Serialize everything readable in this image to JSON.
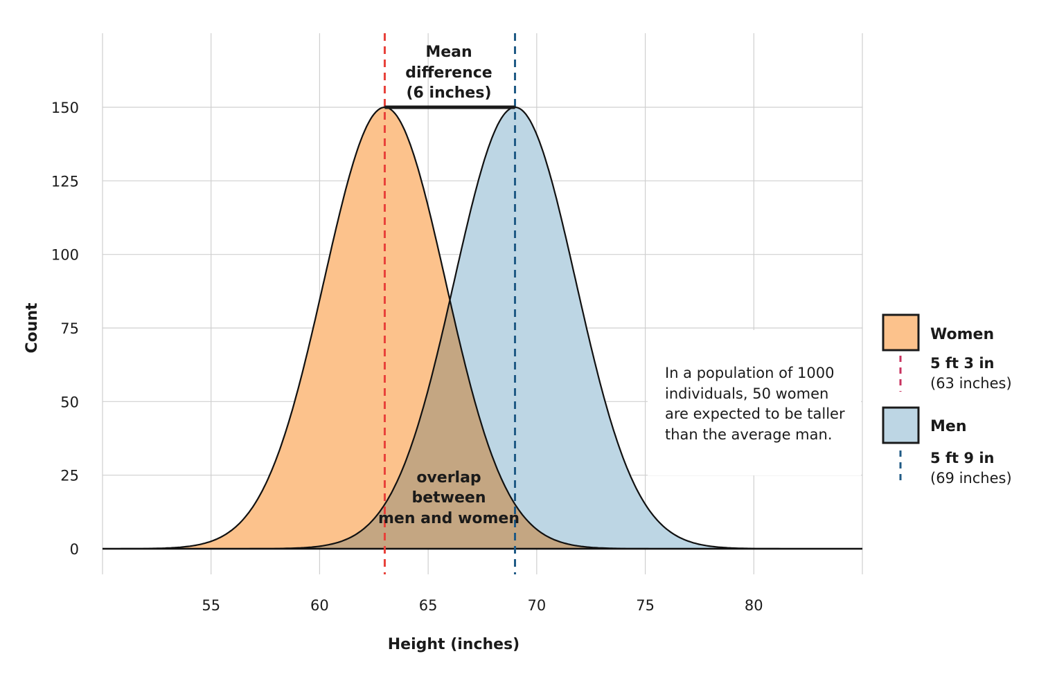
{
  "chart_data": {
    "type": "area",
    "xlabel": "Height (inches)",
    "ylabel": "Count",
    "xlim": [
      50,
      85
    ],
    "ylim": [
      0,
      150
    ],
    "x_ticks": [
      55,
      60,
      65,
      70,
      75,
      80
    ],
    "y_ticks": [
      0,
      25,
      50,
      75,
      100,
      125,
      150
    ],
    "grid": true,
    "series": [
      {
        "name": "Women",
        "mean": 63,
        "peak": 150,
        "sd": 2.8,
        "color": "#fcc28c",
        "mean_line_color": "#e8413a",
        "legend_line_color": "#c8325f",
        "label_ft": "5 ft 3 in",
        "label_in": "(63 inches)"
      },
      {
        "name": "Men",
        "mean": 69,
        "peak": 150,
        "sd": 2.8,
        "color": "#bdd6e4",
        "mean_line_color": "#1f5a85",
        "legend_line_color": "#1f5a85",
        "label_ft": "5 ft 9 in",
        "label_in": "(69 inches)"
      }
    ],
    "overlap_color": "#c4a682",
    "annotations": {
      "mean_difference": [
        "Mean",
        "difference",
        "(6 inches)"
      ],
      "overlap": [
        "overlap",
        "between",
        "men and women"
      ],
      "note": [
        "In a population of 1000",
        "individuals, 50 women",
        "are expected to be taller",
        "than the average man."
      ]
    },
    "legend_position": "right"
  }
}
